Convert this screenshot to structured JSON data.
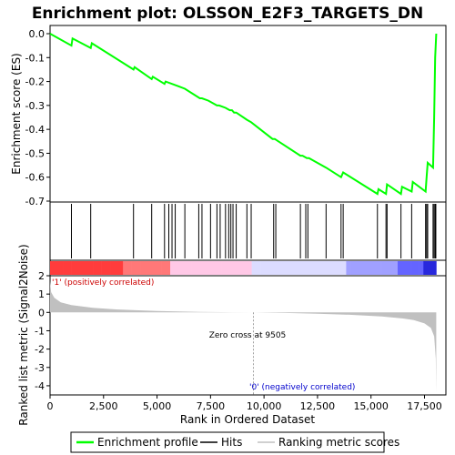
{
  "chart_data": {
    "type": "line",
    "title": "Enrichment plot: OLSSON_E2F3_TARGETS_DN",
    "top_panel": {
      "ylabel": "Enrichment score (ES)",
      "ylim": [
        -0.7,
        0.0
      ],
      "yticks": [
        "0.0",
        "-0.1",
        "-0.2",
        "-0.3",
        "-0.4",
        "-0.5",
        "-0.6",
        "-0.7"
      ],
      "ytick_values": [
        0.0,
        -0.1,
        -0.2,
        -0.3,
        -0.4,
        -0.5,
        -0.6,
        -0.7
      ],
      "series": {
        "name": "Enrichment profile",
        "color": "#00ff00",
        "x": [
          0,
          1000,
          1050,
          1900,
          1950,
          3900,
          3950,
          4750,
          4800,
          5350,
          5400,
          6000,
          6300,
          7000,
          7100,
          7400,
          7800,
          7900,
          8200,
          8400,
          8500,
          8600,
          8700,
          9200,
          9400,
          10400,
          10500,
          11700,
          11800,
          12000,
          12100,
          12900,
          13600,
          13700,
          15300,
          15350,
          15700,
          15750,
          16400,
          16450,
          16900,
          16950,
          17550,
          17600,
          17650,
          17900,
          17950,
          18000,
          18050
        ],
        "y": [
          0.0,
          -0.05,
          -0.02,
          -0.06,
          -0.04,
          -0.15,
          -0.14,
          -0.19,
          -0.18,
          -0.21,
          -0.2,
          -0.22,
          -0.23,
          -0.27,
          -0.27,
          -0.28,
          -0.3,
          -0.3,
          -0.31,
          -0.32,
          -0.32,
          -0.33,
          -0.33,
          -0.36,
          -0.37,
          -0.44,
          -0.44,
          -0.51,
          -0.51,
          -0.52,
          -0.52,
          -0.56,
          -0.6,
          -0.58,
          -0.67,
          -0.65,
          -0.67,
          -0.63,
          -0.67,
          -0.64,
          -0.66,
          -0.62,
          -0.66,
          -0.6,
          -0.54,
          -0.56,
          -0.35,
          -0.1,
          0.0
        ]
      }
    },
    "hits": {
      "name": "Hits",
      "positions": [
        1000,
        1900,
        3900,
        4750,
        5350,
        5550,
        5700,
        5850,
        6300,
        6950,
        7100,
        7500,
        7800,
        7950,
        8200,
        8350,
        8450,
        8550,
        8700,
        9200,
        9400,
        10450,
        10550,
        11700,
        11950,
        12050,
        12900,
        13600,
        13700,
        15300,
        15700,
        15750,
        16400,
        16900,
        17550,
        17600,
        17650,
        17900,
        17950,
        18000,
        18030
      ]
    },
    "ranking": {
      "name": "Ranking metric scores",
      "ylabel": "Ranked list metric (Signal2Noise)",
      "ylim": [
        -4.5,
        2.0
      ],
      "yticks": [
        "2",
        "1",
        "0",
        "-1",
        "-2",
        "-3",
        "-4"
      ],
      "ytick_values": [
        2,
        1,
        0,
        -1,
        -2,
        -3,
        -4
      ],
      "x": [
        0,
        50,
        200,
        500,
        1000,
        2000,
        3000,
        4000,
        5000,
        6000,
        7000,
        8000,
        9505,
        11000,
        12500,
        14000,
        15500,
        16500,
        17000,
        17500,
        17800,
        17950,
        18030,
        18050
      ],
      "y": [
        1.7,
        1.1,
        0.8,
        0.55,
        0.4,
        0.25,
        0.17,
        0.12,
        0.08,
        0.05,
        0.03,
        0.015,
        0.0,
        -0.03,
        -0.07,
        -0.13,
        -0.22,
        -0.33,
        -0.42,
        -0.6,
        -0.85,
        -1.3,
        -2.5,
        -4.4
      ],
      "zero_cross_label": "Zero cross at 9505",
      "positive_label": "'1' (positively correlated)",
      "negative_label": "'0' (negatively correlated)",
      "positive_color": "#cc0000",
      "negative_color": "#0000cc"
    },
    "xlabel": "Rank in Ordered Dataset",
    "xlim": [
      0,
      18500
    ],
    "xticks": [
      "0",
      "2,500",
      "5,000",
      "7,500",
      "10,000",
      "12,500",
      "15,000",
      "17,500"
    ],
    "xtick_values": [
      0,
      2500,
      5000,
      7500,
      10000,
      12500,
      15000,
      17500
    ],
    "legend": {
      "placement": "bottom",
      "items": [
        {
          "label": "Enrichment profile",
          "color": "#00ff00"
        },
        {
          "label": "Hits",
          "color": "#000000"
        },
        {
          "label": "Ranking metric scores",
          "color": "#c0c0c0"
        }
      ]
    }
  }
}
